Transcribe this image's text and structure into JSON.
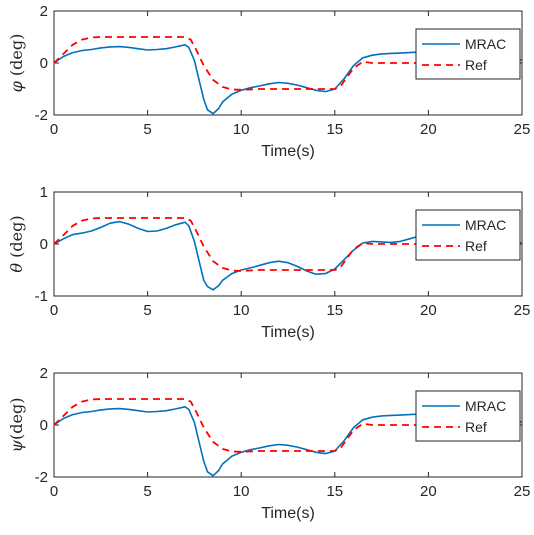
{
  "colors": {
    "mrac": "#0072bd",
    "ref": "#ff0000",
    "axis": "#262626"
  },
  "chart_data": [
    {
      "type": "line",
      "ylabel": {
        "symbol": "φ",
        "text": " (deg)"
      },
      "xlabel": "Time(s)",
      "xlim": [
        0,
        25
      ],
      "ylim": [
        -2,
        2
      ],
      "xticks": [
        0,
        5,
        10,
        15,
        20,
        25
      ],
      "yticks": [
        -2,
        0,
        2
      ],
      "legend": {
        "position": "top-right",
        "entries": [
          "MRAC",
          "Ref"
        ]
      },
      "series": [
        {
          "name": "MRAC",
          "style": "solid",
          "x": [
            0,
            0.5,
            1,
            1.5,
            2,
            2.5,
            3,
            3.5,
            4,
            4.5,
            5,
            5.5,
            6,
            6.5,
            7,
            7.2,
            7.5,
            7.8,
            8,
            8.2,
            8.5,
            8.8,
            9,
            9.5,
            10,
            10.5,
            11,
            11.5,
            12,
            12.5,
            13,
            13.5,
            14,
            14.5,
            15,
            15.5,
            16,
            16.5,
            17,
            17.5,
            18,
            18.5,
            19,
            19.5,
            20,
            20.5,
            21,
            21.5,
            22,
            22.5,
            23,
            23.5,
            24,
            24.5,
            25
          ],
          "y": [
            0,
            0.25,
            0.4,
            0.48,
            0.52,
            0.58,
            0.62,
            0.63,
            0.6,
            0.55,
            0.5,
            0.52,
            0.55,
            0.62,
            0.7,
            0.6,
            0.1,
            -0.8,
            -1.4,
            -1.8,
            -1.95,
            -1.75,
            -1.5,
            -1.2,
            -1.05,
            -0.95,
            -0.88,
            -0.8,
            -0.75,
            -0.78,
            -0.85,
            -0.95,
            -1.05,
            -1.1,
            -1.0,
            -0.6,
            -0.1,
            0.2,
            0.3,
            0.35,
            0.37,
            0.38,
            0.4,
            0.42,
            0.45,
            0.48,
            0.5,
            0.5,
            0.48,
            0.44,
            0.38,
            0.3,
            0.22,
            0.15,
            0.12
          ]
        },
        {
          "name": "Ref",
          "style": "dashed",
          "x": [
            0,
            0.5,
            1,
            1.5,
            2,
            2.5,
            3,
            4,
            5,
            6,
            7,
            7.3,
            7.6,
            8,
            8.5,
            9,
            9.5,
            10,
            11,
            12,
            13,
            14,
            15,
            15.3,
            15.6,
            16,
            16.5,
            17,
            17.5,
            18,
            19,
            20,
            21,
            22,
            23,
            24,
            25
          ],
          "y": [
            0,
            0.35,
            0.7,
            0.9,
            0.98,
            1.0,
            1.0,
            1.0,
            1.0,
            1.0,
            1.0,
            0.9,
            0.5,
            -0.1,
            -0.65,
            -0.92,
            -1.02,
            -1.03,
            -1.0,
            -1.0,
            -1.0,
            -1.0,
            -1.0,
            -0.9,
            -0.6,
            -0.2,
            0.05,
            0.0,
            0.0,
            0.0,
            0.0,
            0.0,
            0.0,
            0.0,
            0.0,
            0.0,
            0.0
          ]
        }
      ]
    },
    {
      "type": "line",
      "ylabel": {
        "symbol": "θ",
        "text": " (deg)"
      },
      "xlabel": "Time(s)",
      "xlim": [
        0,
        25
      ],
      "ylim": [
        -1,
        1
      ],
      "xticks": [
        0,
        5,
        10,
        15,
        20,
        25
      ],
      "yticks": [
        -1,
        0,
        1
      ],
      "legend": {
        "position": "top-right",
        "entries": [
          "MRAC",
          "Ref"
        ]
      },
      "series": [
        {
          "name": "MRAC",
          "style": "solid",
          "x": [
            0,
            0.5,
            1,
            1.5,
            2,
            2.5,
            3,
            3.5,
            4,
            4.5,
            5,
            5.5,
            6,
            6.5,
            7,
            7.2,
            7.5,
            7.8,
            8,
            8.2,
            8.5,
            8.8,
            9,
            9.5,
            10,
            10.5,
            11,
            11.5,
            12,
            12.5,
            13,
            13.5,
            14,
            14.5,
            15,
            15.5,
            16,
            16.5,
            17,
            17.5,
            18,
            18.5,
            19,
            19.5,
            20,
            20.5,
            21,
            21.5,
            22,
            22.5,
            23,
            23.5,
            24,
            24.5,
            25
          ],
          "y": [
            0,
            0.1,
            0.18,
            0.21,
            0.25,
            0.32,
            0.4,
            0.43,
            0.38,
            0.3,
            0.24,
            0.25,
            0.3,
            0.37,
            0.42,
            0.35,
            0.05,
            -0.4,
            -0.7,
            -0.82,
            -0.88,
            -0.8,
            -0.7,
            -0.57,
            -0.5,
            -0.46,
            -0.41,
            -0.36,
            -0.33,
            -0.36,
            -0.43,
            -0.52,
            -0.58,
            -0.57,
            -0.48,
            -0.3,
            -0.12,
            0.02,
            0.05,
            0.04,
            0.03,
            0.05,
            0.1,
            0.15,
            0.2,
            0.24,
            0.25,
            0.24,
            0.22,
            0.19,
            0.15,
            0.11,
            0.07,
            0.04,
            0.02
          ]
        },
        {
          "name": "Ref",
          "style": "dashed",
          "x": [
            0,
            0.5,
            1,
            1.5,
            2,
            2.5,
            3,
            4,
            5,
            6,
            7,
            7.3,
            7.6,
            8,
            8.5,
            9,
            9.5,
            10,
            11,
            12,
            13,
            14,
            15,
            15.3,
            15.6,
            16,
            16.5,
            17,
            17.5,
            18,
            19,
            20,
            21,
            22,
            23,
            24,
            25
          ],
          "y": [
            0,
            0.17,
            0.35,
            0.45,
            0.49,
            0.5,
            0.5,
            0.5,
            0.5,
            0.5,
            0.5,
            0.45,
            0.25,
            -0.05,
            -0.33,
            -0.46,
            -0.51,
            -0.52,
            -0.5,
            -0.5,
            -0.5,
            -0.5,
            -0.5,
            -0.45,
            -0.3,
            -0.1,
            0.02,
            0.0,
            0.0,
            0.0,
            0.0,
            0.0,
            0.0,
            0.0,
            0.0,
            0.0,
            0.0
          ]
        }
      ]
    },
    {
      "type": "line",
      "ylabel": {
        "symbol": "ψ",
        "text": "(deg)"
      },
      "xlabel": "Time(s)",
      "xlim": [
        0,
        25
      ],
      "ylim": [
        -2,
        2
      ],
      "xticks": [
        0,
        5,
        10,
        15,
        20,
        25
      ],
      "yticks": [
        -2,
        0,
        2
      ],
      "legend": {
        "position": "top-right",
        "entries": [
          "MRAC",
          "Ref"
        ]
      },
      "series": [
        {
          "name": "MRAC",
          "style": "solid",
          "x": [
            0,
            0.5,
            1,
            1.5,
            2,
            2.5,
            3,
            3.5,
            4,
            4.5,
            5,
            5.5,
            6,
            6.5,
            7,
            7.2,
            7.5,
            7.8,
            8,
            8.2,
            8.5,
            8.8,
            9,
            9.5,
            10,
            10.5,
            11,
            11.5,
            12,
            12.5,
            13,
            13.5,
            14,
            14.5,
            15,
            15.5,
            16,
            16.5,
            17,
            17.5,
            18,
            18.5,
            19,
            19.5,
            20,
            20.5,
            21,
            21.5,
            22,
            22.5,
            23,
            23.5,
            24,
            24.5,
            25
          ],
          "y": [
            0,
            0.25,
            0.4,
            0.48,
            0.52,
            0.58,
            0.62,
            0.63,
            0.6,
            0.55,
            0.5,
            0.52,
            0.55,
            0.62,
            0.7,
            0.6,
            0.1,
            -0.8,
            -1.4,
            -1.8,
            -1.95,
            -1.75,
            -1.5,
            -1.2,
            -1.05,
            -0.95,
            -0.88,
            -0.8,
            -0.75,
            -0.78,
            -0.85,
            -0.95,
            -1.05,
            -1.1,
            -1.0,
            -0.6,
            -0.1,
            0.2,
            0.3,
            0.35,
            0.37,
            0.38,
            0.4,
            0.42,
            0.45,
            0.48,
            0.5,
            0.5,
            0.48,
            0.44,
            0.38,
            0.3,
            0.22,
            0.15,
            0.12
          ]
        },
        {
          "name": "Ref",
          "style": "dashed",
          "x": [
            0,
            0.5,
            1,
            1.5,
            2,
            2.5,
            3,
            4,
            5,
            6,
            7,
            7.3,
            7.6,
            8,
            8.5,
            9,
            9.5,
            10,
            11,
            12,
            13,
            14,
            15,
            15.3,
            15.6,
            16,
            16.5,
            17,
            17.5,
            18,
            19,
            20,
            21,
            22,
            23,
            24,
            25
          ],
          "y": [
            0,
            0.35,
            0.7,
            0.9,
            0.98,
            1.0,
            1.0,
            1.0,
            1.0,
            1.0,
            1.0,
            0.9,
            0.5,
            -0.1,
            -0.65,
            -0.92,
            -1.02,
            -1.03,
            -1.0,
            -1.0,
            -1.0,
            -1.0,
            -1.0,
            -0.9,
            -0.6,
            -0.2,
            0.05,
            0.0,
            0.0,
            0.0,
            0.0,
            0.0,
            0.0,
            0.0,
            0.0,
            0.0,
            0.0
          ]
        }
      ]
    }
  ]
}
